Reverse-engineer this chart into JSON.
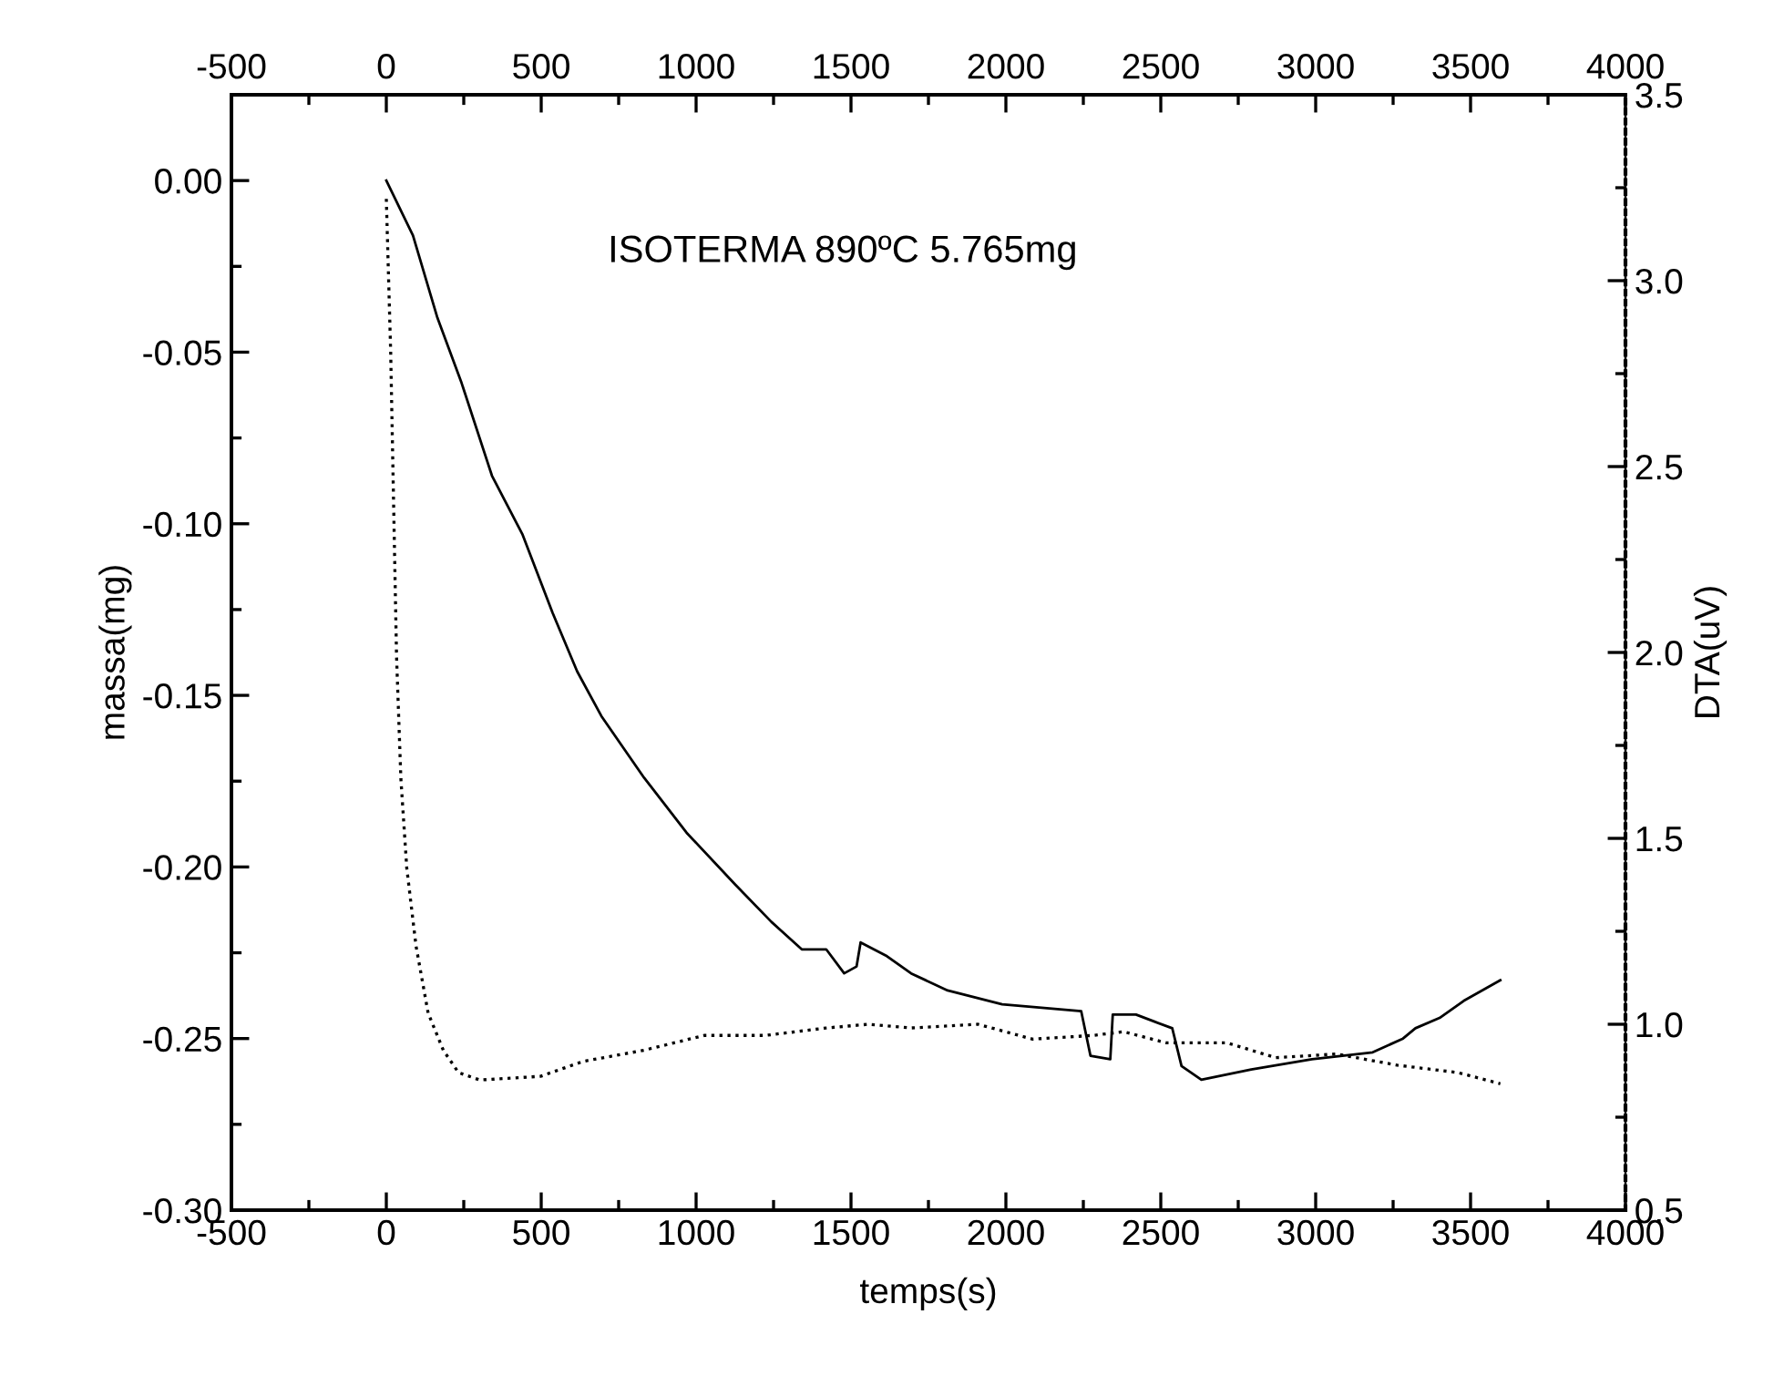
{
  "chart_data": {
    "type": "line",
    "xlabel": "temps(s)",
    "ylabel": "massa(mg)",
    "y2label": "DTA(uV)",
    "annotations": [
      "ISOTERMA 890ºC 5.765mg"
    ],
    "xlim": [
      -500,
      4000
    ],
    "xticks": [
      -500,
      0,
      500,
      1000,
      1500,
      2000,
      2500,
      3000,
      3500,
      4000
    ],
    "x2lim": [
      -500,
      4000
    ],
    "x2ticks": [
      -500,
      0,
      500,
      1000,
      1500,
      2000,
      2500,
      3000,
      3500,
      4000
    ],
    "ylim": [
      -0.3,
      0.025
    ],
    "yticks": [
      {
        "value": -0.3,
        "label": "-0.30"
      },
      {
        "value": -0.25,
        "label": "-0.25"
      },
      {
        "value": -0.2,
        "label": "-0.20"
      },
      {
        "value": -0.15,
        "label": "-0.15"
      },
      {
        "value": -0.1,
        "label": "-0.10"
      },
      {
        "value": -0.05,
        "label": "-0.05"
      },
      {
        "value": 0,
        "label": "0.00"
      }
    ],
    "y2lim": [
      0.5,
      3.5
    ],
    "y2ticks": [
      0.5,
      {
        "value": 1,
        "label": "1.0"
      },
      1.5,
      {
        "value": 2,
        "label": "2.0"
      },
      2.5,
      {
        "value": 3,
        "label": "3.0"
      },
      3.5
    ],
    "grid": false,
    "legend": false,
    "series": [
      {
        "color": "#000000",
        "line_style": "solid",
        "x": [
          0,
          86,
          165,
          243,
          341,
          439,
          537,
          616,
          694,
          832,
          969,
          1125,
          1243,
          1341,
          1420,
          1478,
          1518,
          1531,
          1616,
          1694,
          1812,
          1988,
          2243,
          2273,
          2337,
          2345,
          2420,
          2478,
          2537,
          2567,
          2631,
          2792,
          2988,
          3184,
          3282,
          3322,
          3400,
          3478,
          3596
        ],
        "values": [
          0.0,
          -0.016,
          -0.04,
          -0.059,
          -0.086,
          -0.103,
          -0.126,
          -0.143,
          -0.156,
          -0.174,
          -0.19,
          -0.205,
          -0.216,
          -0.224,
          -0.224,
          -0.231,
          -0.229,
          -0.222,
          -0.226,
          -0.231,
          -0.236,
          -0.24,
          -0.242,
          -0.255,
          -0.256,
          -0.243,
          -0.243,
          -0.245,
          -0.247,
          -0.258,
          -0.262,
          -0.259,
          -0.256,
          -0.254,
          -0.25,
          -0.247,
          -0.244,
          -0.239,
          -0.233
        ]
      },
      {
        "color": "#000000",
        "line_style": "dotted",
        "axis": "y2",
        "x": [
          0,
          14,
          27,
          33,
          47,
          66,
          96,
          135,
          184,
          233,
          302,
          498,
          635,
          831,
          1027,
          1224,
          1420,
          1557,
          1694,
          1910,
          2086,
          2282,
          2380,
          2518,
          2714,
          2871,
          3067,
          3263,
          3459,
          3596
        ],
        "values": [
          3.22,
          2.81,
          2.25,
          1.99,
          1.66,
          1.42,
          1.21,
          1.03,
          0.93,
          0.87,
          0.85,
          0.86,
          0.9,
          0.93,
          0.97,
          0.97,
          0.99,
          1.0,
          0.99,
          1.0,
          0.96,
          0.97,
          0.98,
          0.95,
          0.95,
          0.91,
          0.92,
          0.89,
          0.87,
          0.84
        ]
      }
    ]
  }
}
